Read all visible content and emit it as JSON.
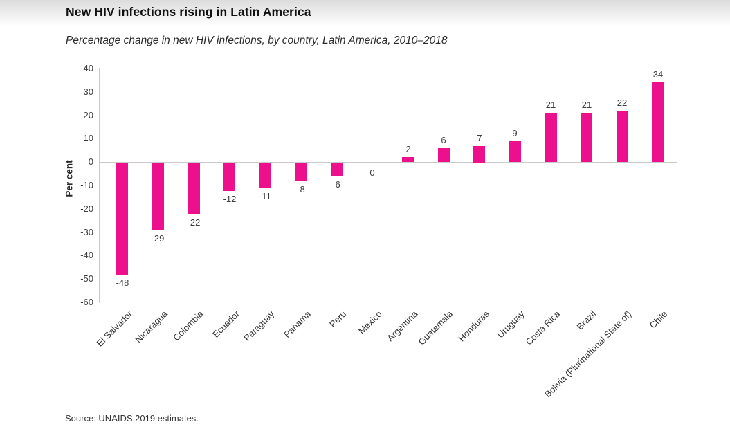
{
  "header": {
    "title": "New HIV infections rising in Latin America",
    "subtitle": "Percentage change in new HIV infections, by country, Latin America, 2010–2018"
  },
  "footer": {
    "source": "Source: UNAIDS 2019 estimates."
  },
  "colors": {
    "bar": "#ec108d",
    "axis_line": "#c9c9c9",
    "tick_text": "#3d3d3d"
  },
  "chart_data": {
    "type": "bar",
    "title": "New HIV infections rising in Latin America",
    "subtitle": "Percentage change in new HIV infections, by country, Latin America, 2010–2018",
    "xlabel": "",
    "ylabel": "Per cent",
    "ylim": [
      -60,
      40
    ],
    "ytick_step": 10,
    "grid": false,
    "legend": false,
    "bar_color": "#ec108d",
    "categories": [
      "El Salvador",
      "Nicaragua",
      "Colombia",
      "Ecuador",
      "Paraguay",
      "Panama",
      "Peru",
      "Mexico",
      "Argentina",
      "Guatemala",
      "Honduras",
      "Uruguay",
      "Costa Rica",
      "Brazil",
      "Bolivia (Plurinational State of)",
      "Chile"
    ],
    "values": [
      -48,
      -29,
      -22,
      -12,
      -11,
      -8,
      -6,
      0,
      2,
      6,
      7,
      9,
      21,
      21,
      22,
      34
    ]
  }
}
